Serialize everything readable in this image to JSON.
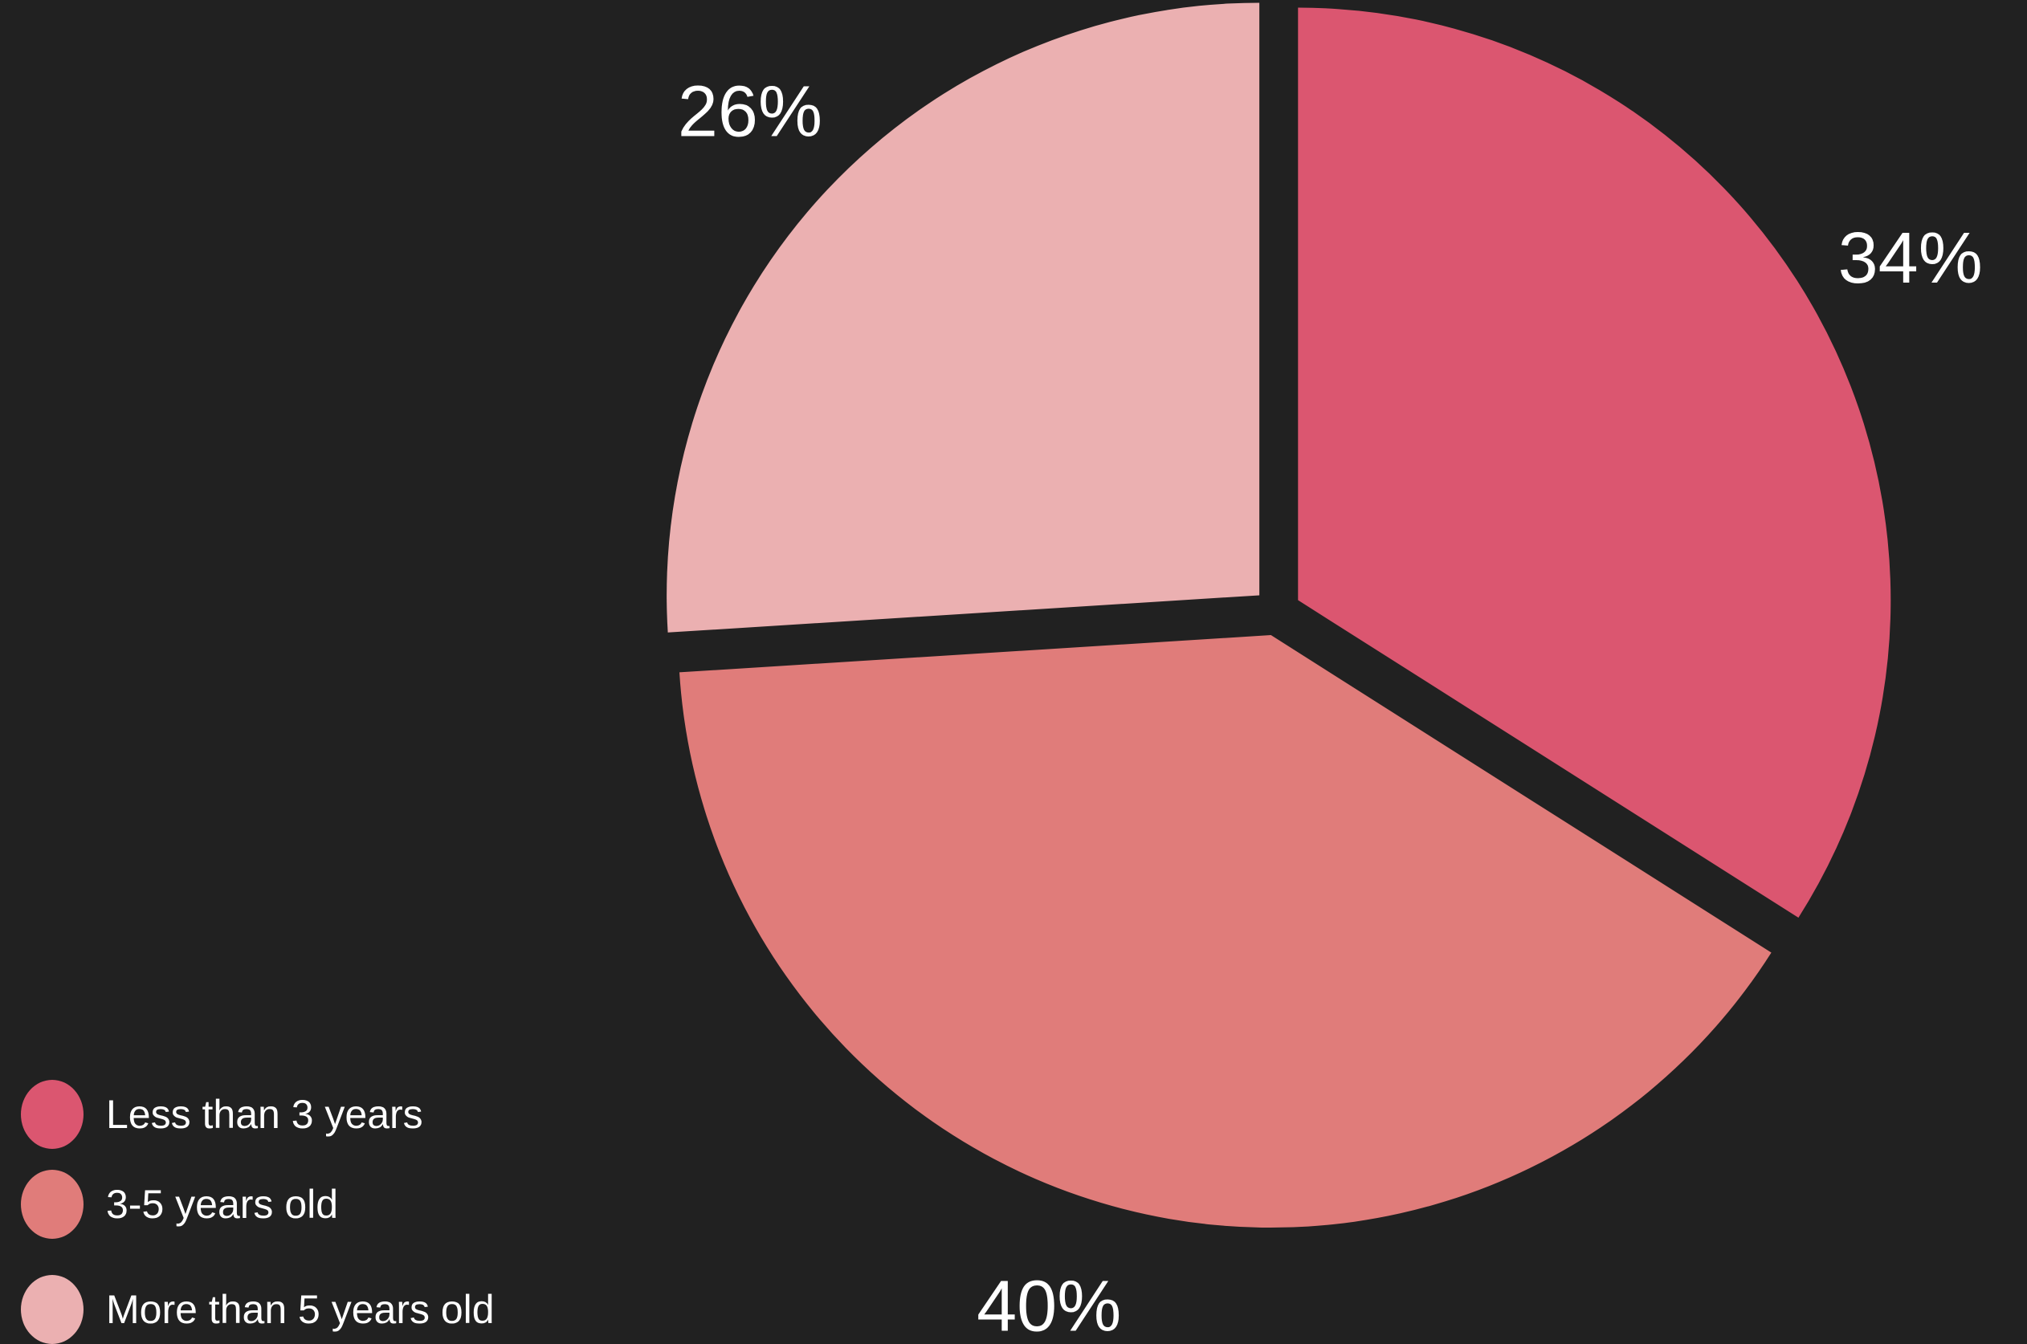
{
  "chart_data": {
    "type": "pie",
    "title": "",
    "background": "#212121",
    "start_angle_deg": 0,
    "direction": "clockwise",
    "exploded": true,
    "slices": [
      {
        "label": "Less than 3 years",
        "value": 34,
        "display": "34%",
        "color": "#DB5670"
      },
      {
        "label": "3-5 years old",
        "value": 40,
        "display": "40%",
        "color": "#E07C7A"
      },
      {
        "label": "More than 5 years old",
        "value": 26,
        "display": "26%",
        "color": "#EBB0B1"
      }
    ],
    "legend": {
      "position": "bottom-left",
      "items": [
        {
          "label": "Less than 3 years",
          "color": "#DB5670"
        },
        {
          "label": "3-5 years old",
          "color": "#E07C7A"
        },
        {
          "label": "More than 5 years old",
          "color": "#EBB0B1"
        }
      ]
    }
  }
}
